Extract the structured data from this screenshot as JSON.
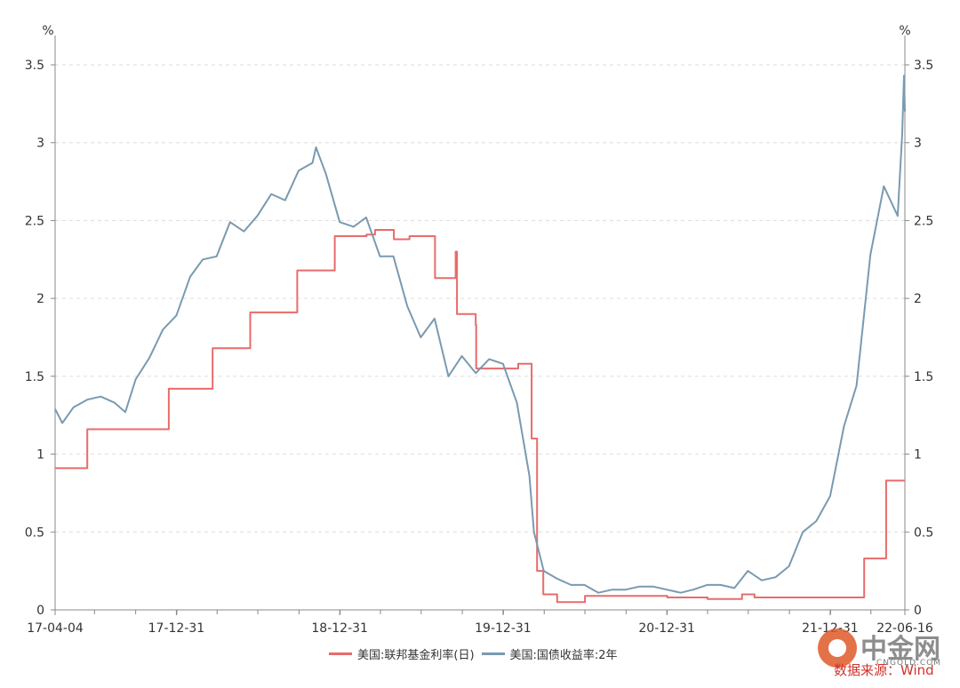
{
  "chart_data": {
    "type": "line",
    "left_unit": "%",
    "right_unit": "%",
    "y_ticks": [
      "0",
      "0.5",
      "1",
      "1.5",
      "2",
      "2.5",
      "3",
      "3.5"
    ],
    "ylim": [
      0,
      3.5
    ],
    "x_ticks": [
      "17-04-04",
      "17-12-31",
      "18-12-31",
      "19-12-31",
      "20-12-31",
      "21-12-31",
      "22-06-16"
    ],
    "x_range": [
      "2017-04-04",
      "2022-06-16"
    ],
    "grid": true,
    "legend_position": "bottom",
    "series": [
      {
        "name": "美国:联邦基金利率(日)",
        "color": "#e86b6b",
        "style": "step",
        "points": [
          [
            "2017-04-04",
            0.91
          ],
          [
            "2017-06-15",
            1.16
          ],
          [
            "2017-12-14",
            1.42
          ],
          [
            "2018-03-22",
            1.68
          ],
          [
            "2018-06-14",
            1.91
          ],
          [
            "2018-09-27",
            2.18
          ],
          [
            "2018-12-20",
            2.4
          ],
          [
            "2019-03-01",
            2.41
          ],
          [
            "2019-03-20",
            2.44
          ],
          [
            "2019-05-01",
            2.38
          ],
          [
            "2019-06-05",
            2.4
          ],
          [
            "2019-08-01",
            2.13
          ],
          [
            "2019-09-16",
            2.3
          ],
          [
            "2019-09-19",
            1.9
          ],
          [
            "2019-10-31",
            1.83
          ],
          [
            "2019-11-01",
            1.55
          ],
          [
            "2020-01-02",
            1.55
          ],
          [
            "2020-02-03",
            1.58
          ],
          [
            "2020-03-04",
            1.1
          ],
          [
            "2020-03-16",
            0.25
          ],
          [
            "2020-03-30",
            0.1
          ],
          [
            "2020-04-30",
            0.05
          ],
          [
            "2020-07-01",
            0.09
          ],
          [
            "2020-11-01",
            0.09
          ],
          [
            "2021-01-01",
            0.08
          ],
          [
            "2021-04-01",
            0.07
          ],
          [
            "2021-06-17",
            0.1
          ],
          [
            "2021-07-15",
            0.08
          ],
          [
            "2022-03-17",
            0.33
          ],
          [
            "2022-05-05",
            0.83
          ],
          [
            "2022-06-16",
            0.83
          ]
        ]
      },
      {
        "name": "美国:国债收益率:2年",
        "color": "#7a9ab0",
        "style": "line",
        "points": [
          [
            "2017-04-04",
            1.29
          ],
          [
            "2017-04-20",
            1.2
          ],
          [
            "2017-05-15",
            1.3
          ],
          [
            "2017-06-15",
            1.35
          ],
          [
            "2017-07-15",
            1.37
          ],
          [
            "2017-08-15",
            1.33
          ],
          [
            "2017-09-08",
            1.27
          ],
          [
            "2017-10-01",
            1.48
          ],
          [
            "2017-11-01",
            1.62
          ],
          [
            "2017-12-01",
            1.8
          ],
          [
            "2017-12-31",
            1.89
          ],
          [
            "2018-01-31",
            2.14
          ],
          [
            "2018-02-28",
            2.25
          ],
          [
            "2018-03-31",
            2.27
          ],
          [
            "2018-04-30",
            2.49
          ],
          [
            "2018-05-31",
            2.43
          ],
          [
            "2018-06-30",
            2.53
          ],
          [
            "2018-07-31",
            2.67
          ],
          [
            "2018-08-31",
            2.63
          ],
          [
            "2018-09-30",
            2.82
          ],
          [
            "2018-10-31",
            2.87
          ],
          [
            "2018-11-08",
            2.97
          ],
          [
            "2018-11-30",
            2.8
          ],
          [
            "2018-12-31",
            2.49
          ],
          [
            "2019-01-31",
            2.46
          ],
          [
            "2019-02-28",
            2.52
          ],
          [
            "2019-03-31",
            2.27
          ],
          [
            "2019-04-30",
            2.27
          ],
          [
            "2019-05-31",
            1.95
          ],
          [
            "2019-06-30",
            1.75
          ],
          [
            "2019-07-31",
            1.87
          ],
          [
            "2019-08-31",
            1.5
          ],
          [
            "2019-09-30",
            1.63
          ],
          [
            "2019-10-31",
            1.52
          ],
          [
            "2019-11-30",
            1.61
          ],
          [
            "2019-12-31",
            1.58
          ],
          [
            "2020-01-31",
            1.33
          ],
          [
            "2020-02-28",
            0.86
          ],
          [
            "2020-03-09",
            0.5
          ],
          [
            "2020-03-31",
            0.25
          ],
          [
            "2020-04-30",
            0.2
          ],
          [
            "2020-05-31",
            0.16
          ],
          [
            "2020-06-30",
            0.16
          ],
          [
            "2020-07-31",
            0.11
          ],
          [
            "2020-08-31",
            0.13
          ],
          [
            "2020-09-30",
            0.13
          ],
          [
            "2020-10-31",
            0.15
          ],
          [
            "2020-11-30",
            0.15
          ],
          [
            "2020-12-31",
            0.13
          ],
          [
            "2021-01-31",
            0.11
          ],
          [
            "2021-02-28",
            0.13
          ],
          [
            "2021-03-31",
            0.16
          ],
          [
            "2021-04-30",
            0.16
          ],
          [
            "2021-05-31",
            0.14
          ],
          [
            "2021-06-30",
            0.25
          ],
          [
            "2021-07-31",
            0.19
          ],
          [
            "2021-08-31",
            0.21
          ],
          [
            "2021-09-30",
            0.28
          ],
          [
            "2021-10-31",
            0.5
          ],
          [
            "2021-11-30",
            0.57
          ],
          [
            "2021-12-31",
            0.73
          ],
          [
            "2022-01-31",
            1.18
          ],
          [
            "2022-02-28",
            1.44
          ],
          [
            "2022-03-31",
            2.28
          ],
          [
            "2022-04-30",
            2.72
          ],
          [
            "2022-05-31",
            2.53
          ],
          [
            "2022-06-10",
            3.06
          ],
          [
            "2022-06-14",
            3.43
          ],
          [
            "2022-06-16",
            3.2
          ]
        ]
      }
    ]
  },
  "source_text": "数据来源：Wind",
  "watermark": {
    "title": "中金网",
    "subtitle": "CNGOLD.COM"
  }
}
